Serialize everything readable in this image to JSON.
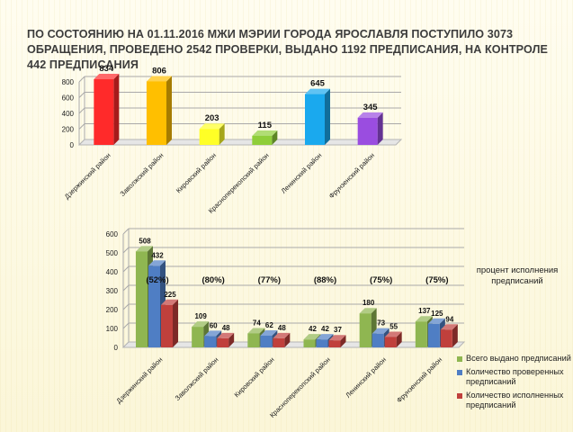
{
  "title": "ПО СОСТОЯНИЮ НА 01.11.2016 МЖИ МЭРИИ ГОРОДА ЯРОСЛАВЛЯ ПОСТУПИЛО 3073 ОБРАЩЕНИЯ, ПРОВЕДЕНО 2542 ПРОВЕРКИ, ВЫДАНО 1192 ПРЕДПИСАНИЯ, НА КОНТРОЛЕ 442 ПРЕДПИСАНИЯ",
  "note": "процент исполнения предписаний",
  "chart_data": [
    {
      "type": "bar",
      "categories": [
        "Дзержинский район",
        "Заволжский район",
        "Кировский район",
        "Красноперекопский район",
        "Ленинский район",
        "Фрунзенский район"
      ],
      "values": [
        834,
        806,
        203,
        115,
        645,
        345
      ],
      "colors": [
        "#ff2a2a",
        "#ffbf00",
        "#ffff26",
        "#8fce3a",
        "#1aa9ee",
        "#9a4de0"
      ],
      "ylim": [
        0,
        800
      ],
      "yticks": [
        0,
        200,
        400,
        600,
        800
      ],
      "grid": true
    },
    {
      "type": "bar",
      "categories": [
        "Дзержинский район",
        "Заволжский район",
        "Кировский район",
        "Красноперекопский район",
        "Ленинский район",
        "Фрунзенский район"
      ],
      "series": [
        {
          "name": "Всего выдано предписаний",
          "values": [
            508,
            109,
            74,
            42,
            180,
            137
          ],
          "color": "#8fb651"
        },
        {
          "name": "Количество проверенных предписаний",
          "values": [
            432,
            60,
            62,
            42,
            73,
            125
          ],
          "color": "#4f7ec4"
        },
        {
          "name": "Количество исполненных предписаний",
          "values": [
            225,
            48,
            48,
            37,
            55,
            94
          ],
          "color": "#c0403c"
        }
      ],
      "percent_labels": [
        "(52%)",
        "(80%)",
        "(77%)",
        "(88%)",
        "(75%)",
        "(75%)"
      ],
      "ylim": [
        0,
        600
      ],
      "yticks": [
        0,
        100,
        200,
        300,
        400,
        500,
        600
      ],
      "grid": true,
      "legend": "right"
    }
  ]
}
